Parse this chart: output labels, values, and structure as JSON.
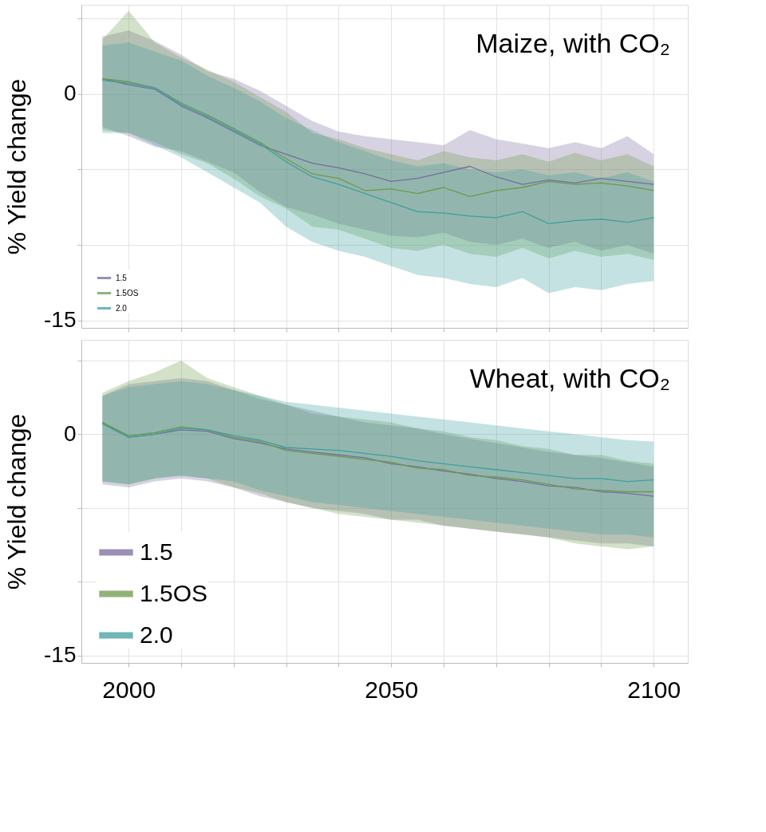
{
  "chart_data": [
    {
      "type": "line",
      "title": "Maize, with CO₂",
      "ylabel": "% Yield change",
      "legend": "bottom left",
      "grid": true,
      "tick_labels": "y",
      "x": [
        1995,
        2000,
        2005,
        2010,
        2015,
        2020,
        2025,
        2030,
        2035,
        2040,
        2045,
        2050,
        2055,
        2060,
        2065,
        2070,
        2075,
        2080,
        2085,
        2090,
        2095,
        2100
      ],
      "xlim": [
        1991,
        2106.5
      ],
      "xticks": [
        {
          "value": 2000,
          "label": null
        },
        {
          "value": 2010,
          "label": null
        },
        {
          "value": 2020,
          "label": null
        },
        {
          "value": 2030,
          "label": null
        },
        {
          "value": 2040,
          "label": null
        },
        {
          "value": 2050,
          "label": null
        },
        {
          "value": 2060,
          "label": null
        },
        {
          "value": 2070,
          "label": null
        },
        {
          "value": 2080,
          "label": null
        },
        {
          "value": 2090,
          "label": null
        },
        {
          "value": 2100,
          "label": null
        }
      ],
      "ylim": [
        -15.5,
        5.9
      ],
      "yticks": [
        {
          "value": 5,
          "label": null
        },
        0,
        {
          "value": -5,
          "label": null
        },
        {
          "value": -10,
          "label": null
        },
        -15
      ],
      "series": [
        {
          "name": "1.5",
          "color": "#7b6aa0",
          "values": [
            1.0,
            0.6,
            0.3,
            -0.8,
            -1.6,
            -2.5,
            -3.4,
            -4.0,
            -4.6,
            -4.9,
            -5.3,
            -5.8,
            -5.6,
            -5.2,
            -4.8,
            -5.5,
            -6.0,
            -5.7,
            -5.9,
            -5.6,
            -5.8,
            -6.0
          ],
          "upper": [
            3.8,
            4.2,
            3.5,
            2.6,
            1.5,
            1.0,
            0.2,
            -0.8,
            -1.8,
            -2.5,
            -2.8,
            -3.0,
            -3.2,
            -3.4,
            -2.4,
            -3.0,
            -3.3,
            -3.6,
            -3.2,
            -3.6,
            -2.8,
            -4.0
          ],
          "lower": [
            -2.2,
            -2.8,
            -3.5,
            -3.8,
            -4.5,
            -5.2,
            -6.5,
            -7.5,
            -8.0,
            -8.6,
            -9.0,
            -9.4,
            -9.5,
            -9.2,
            -9.8,
            -10.0,
            -9.6,
            -10.2,
            -9.8,
            -10.4,
            -10.0,
            -10.6
          ]
        },
        {
          "name": "1.5OS",
          "color": "#6b9a4a",
          "values": [
            1.0,
            0.8,
            0.4,
            -0.6,
            -1.4,
            -2.3,
            -3.2,
            -4.3,
            -5.3,
            -5.6,
            -6.4,
            -6.3,
            -6.6,
            -6.2,
            -6.8,
            -6.4,
            -6.2,
            -5.8,
            -6.0,
            -5.9,
            -6.1,
            -6.4
          ],
          "upper": [
            3.6,
            5.5,
            3.4,
            2.4,
            1.6,
            0.8,
            -0.2,
            -1.2,
            -2.6,
            -3.0,
            -3.6,
            -4.0,
            -4.4,
            -3.8,
            -4.2,
            -4.4,
            -4.0,
            -4.5,
            -3.9,
            -4.4,
            -4.0,
            -4.8
          ],
          "lower": [
            -2.4,
            -2.6,
            -3.2,
            -4.0,
            -4.6,
            -5.6,
            -6.8,
            -7.6,
            -8.8,
            -9.0,
            -9.6,
            -10.2,
            -10.4,
            -10.0,
            -10.6,
            -10.8,
            -10.2,
            -10.9,
            -10.4,
            -10.8,
            -10.6,
            -11.0
          ]
        },
        {
          "name": "2.0",
          "color": "#3f9ea0",
          "values": [
            0.9,
            0.7,
            0.4,
            -0.7,
            -1.5,
            -2.4,
            -3.3,
            -4.5,
            -5.5,
            -6.0,
            -6.6,
            -7.2,
            -7.8,
            -7.9,
            -8.1,
            -8.2,
            -7.8,
            -8.6,
            -8.4,
            -8.3,
            -8.5,
            -8.2
          ],
          "upper": [
            3.2,
            3.4,
            2.8,
            2.2,
            1.2,
            0.4,
            -0.5,
            -1.6,
            -2.4,
            -3.2,
            -3.8,
            -4.4,
            -4.8,
            -4.6,
            -5.0,
            -5.2,
            -5.0,
            -5.4,
            -5.2,
            -5.6,
            -5.2,
            -5.8
          ],
          "lower": [
            -2.6,
            -2.6,
            -3.4,
            -4.2,
            -5.2,
            -6.2,
            -7.2,
            -8.8,
            -9.8,
            -10.4,
            -10.8,
            -11.4,
            -12.0,
            -12.2,
            -12.6,
            -12.8,
            -12.2,
            -13.2,
            -12.8,
            -13.0,
            -12.6,
            -12.4
          ]
        }
      ]
    },
    {
      "type": "line",
      "title": "Wheat, with CO₂",
      "ylabel": "% Yield change",
      "legend": "bottom left",
      "grid": true,
      "x": [
        1995,
        2000,
        2005,
        2010,
        2015,
        2020,
        2025,
        2030,
        2035,
        2040,
        2045,
        2050,
        2055,
        2060,
        2065,
        2070,
        2075,
        2080,
        2085,
        2090,
        2095,
        2100
      ],
      "xlim": [
        1991,
        2106.5
      ],
      "xticks": [
        2000,
        {
          "value": 2010,
          "label": null
        },
        {
          "value": 2020,
          "label": null
        },
        {
          "value": 2030,
          "label": null
        },
        {
          "value": 2040,
          "label": null
        },
        2050,
        {
          "value": 2060,
          "label": null
        },
        {
          "value": 2070,
          "label": null
        },
        {
          "value": 2080,
          "label": null
        },
        {
          "value": 2090,
          "label": null
        },
        2100
      ],
      "ylim": [
        -15.5,
        6.4
      ],
      "yticks": [
        {
          "value": 5,
          "label": null
        },
        0,
        {
          "value": -5,
          "label": null
        },
        {
          "value": -10,
          "label": null
        },
        -15
      ],
      "series": [
        {
          "name": "1.5",
          "color": "#7b6aa0",
          "values": [
            0.8,
            -0.2,
            0.0,
            0.3,
            0.2,
            -0.3,
            -0.6,
            -1.0,
            -1.2,
            -1.4,
            -1.6,
            -2.0,
            -2.2,
            -2.5,
            -2.7,
            -3.0,
            -3.2,
            -3.5,
            -3.6,
            -3.9,
            -4.0,
            -4.2
          ],
          "upper": [
            2.6,
            3.4,
            3.6,
            3.8,
            3.6,
            3.0,
            2.4,
            2.0,
            1.6,
            1.2,
            0.8,
            0.6,
            0.4,
            0.0,
            -0.3,
            -0.6,
            -0.9,
            -1.2,
            -1.4,
            -1.6,
            -1.9,
            -2.2
          ],
          "lower": [
            -3.4,
            -3.6,
            -3.2,
            -3.0,
            -3.2,
            -3.6,
            -4.2,
            -4.6,
            -5.0,
            -5.2,
            -5.4,
            -5.8,
            -5.8,
            -6.2,
            -6.4,
            -6.6,
            -6.8,
            -7.0,
            -7.2,
            -7.4,
            -7.4,
            -7.6
          ]
        },
        {
          "name": "1.5OS",
          "color": "#6b9a4a",
          "values": [
            0.8,
            -0.1,
            0.1,
            0.5,
            0.3,
            -0.2,
            -0.5,
            -1.1,
            -1.3,
            -1.5,
            -1.7,
            -1.9,
            -2.3,
            -2.4,
            -2.8,
            -2.9,
            -3.1,
            -3.4,
            -3.7,
            -3.8,
            -3.9,
            -3.9
          ],
          "upper": [
            2.8,
            3.6,
            4.2,
            5.0,
            3.8,
            3.2,
            2.6,
            2.0,
            1.4,
            1.2,
            1.0,
            0.8,
            0.4,
            0.2,
            -0.2,
            -0.4,
            -0.8,
            -1.0,
            -1.4,
            -1.4,
            -1.8,
            -2.0
          ],
          "lower": [
            -3.2,
            -3.4,
            -3.0,
            -2.8,
            -3.0,
            -3.6,
            -4.0,
            -4.6,
            -5.0,
            -5.4,
            -5.6,
            -5.8,
            -6.0,
            -6.2,
            -6.4,
            -6.6,
            -6.8,
            -7.0,
            -7.4,
            -7.6,
            -7.8,
            -7.6
          ]
        },
        {
          "name": "2.0",
          "color": "#3f9ea0",
          "values": [
            0.7,
            -0.2,
            0.0,
            0.4,
            0.3,
            -0.1,
            -0.4,
            -0.9,
            -1.0,
            -1.1,
            -1.3,
            -1.5,
            -1.8,
            -2.0,
            -2.2,
            -2.4,
            -2.6,
            -2.8,
            -3.0,
            -3.0,
            -3.2,
            -3.1
          ],
          "upper": [
            2.6,
            3.2,
            3.4,
            3.6,
            3.4,
            3.0,
            2.6,
            2.2,
            2.0,
            1.8,
            1.6,
            1.4,
            1.2,
            1.0,
            0.8,
            0.6,
            0.4,
            0.2,
            0.0,
            -0.2,
            -0.4,
            -0.5
          ],
          "lower": [
            -3.2,
            -3.4,
            -3.0,
            -2.8,
            -3.0,
            -3.2,
            -3.8,
            -4.2,
            -4.6,
            -4.8,
            -5.0,
            -5.2,
            -5.4,
            -5.6,
            -5.8,
            -6.0,
            -6.2,
            -6.4,
            -6.6,
            -6.8,
            -6.8,
            -7.0
          ]
        }
      ]
    }
  ]
}
